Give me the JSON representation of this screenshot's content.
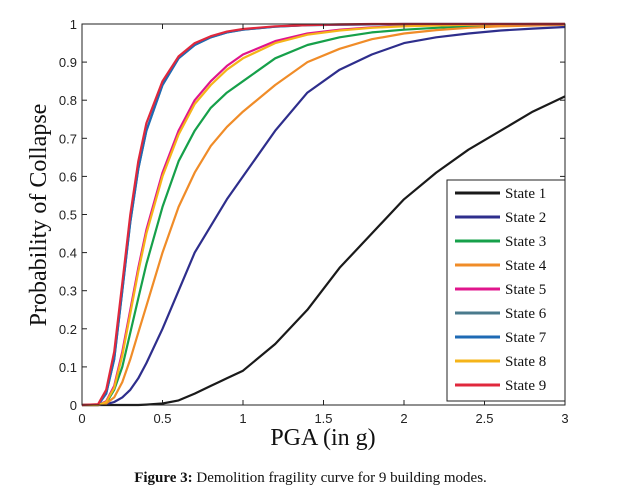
{
  "chart_data": {
    "type": "line",
    "title": "",
    "xlabel": "PGA (in g)",
    "ylabel": "Probability of Collapse",
    "xlim": [
      0,
      3
    ],
    "ylim": [
      0,
      1
    ],
    "xticks": [
      0,
      0.5,
      1,
      1.5,
      2,
      2.5,
      3
    ],
    "xtick_labels": [
      "0",
      "0.5",
      "1",
      "1.5",
      "2",
      "2.5",
      "3"
    ],
    "yticks": [
      0,
      0.1,
      0.2,
      0.3,
      0.4,
      0.5,
      0.6,
      0.7,
      0.8,
      0.9,
      1
    ],
    "ytick_labels": [
      "0",
      "0.1",
      "0.2",
      "0.3",
      "0.4",
      "0.5",
      "0.6",
      "0.7",
      "0.8",
      "0.9",
      "1"
    ],
    "grid": false,
    "legend_position": "lower-right",
    "x": [
      0,
      0.1,
      0.15,
      0.2,
      0.25,
      0.3,
      0.35,
      0.4,
      0.5,
      0.6,
      0.7,
      0.8,
      0.9,
      1.0,
      1.2,
      1.4,
      1.6,
      1.8,
      2.0,
      2.2,
      2.4,
      2.6,
      2.8,
      3.0
    ],
    "series": [
      {
        "name": "State 1",
        "color": "#1a1a1a",
        "values": [
          0,
          0,
          0,
          0,
          0,
          0,
          0,
          0.001,
          0.004,
          0.012,
          0.03,
          0.05,
          0.07,
          0.09,
          0.16,
          0.25,
          0.36,
          0.45,
          0.54,
          0.61,
          0.67,
          0.72,
          0.77,
          0.81
        ]
      },
      {
        "name": "State 2",
        "color": "#2e2e8c",
        "values": [
          0,
          0,
          0.002,
          0.008,
          0.02,
          0.04,
          0.07,
          0.11,
          0.2,
          0.3,
          0.4,
          0.47,
          0.54,
          0.6,
          0.72,
          0.82,
          0.88,
          0.92,
          0.95,
          0.965,
          0.975,
          0.983,
          0.988,
          0.992
        ]
      },
      {
        "name": "State 3",
        "color": "#16a04a",
        "values": [
          0,
          0,
          0.005,
          0.04,
          0.1,
          0.19,
          0.28,
          0.37,
          0.52,
          0.64,
          0.72,
          0.78,
          0.82,
          0.85,
          0.91,
          0.945,
          0.965,
          0.978,
          0.985,
          0.99,
          0.994,
          0.996,
          0.998,
          0.999
        ]
      },
      {
        "name": "State 4",
        "color": "#f08c28",
        "values": [
          0,
          0,
          0.004,
          0.02,
          0.06,
          0.12,
          0.19,
          0.26,
          0.4,
          0.52,
          0.61,
          0.68,
          0.73,
          0.77,
          0.84,
          0.9,
          0.935,
          0.96,
          0.975,
          0.984,
          0.99,
          0.994,
          0.996,
          0.998
        ]
      },
      {
        "name": "State 5",
        "color": "#e0158c",
        "values": [
          0,
          0,
          0.01,
          0.05,
          0.14,
          0.25,
          0.36,
          0.46,
          0.61,
          0.72,
          0.8,
          0.85,
          0.89,
          0.92,
          0.955,
          0.975,
          0.985,
          0.991,
          0.995,
          0.997,
          0.998,
          0.999,
          1.0,
          1.0
        ]
      },
      {
        "name": "State 6",
        "color": "#4a7a8c",
        "values": [
          0,
          0,
          0.03,
          0.12,
          0.3,
          0.48,
          0.62,
          0.72,
          0.84,
          0.91,
          0.945,
          0.965,
          0.978,
          0.985,
          0.993,
          0.997,
          0.998,
          0.999,
          1.0,
          1.0,
          1.0,
          1.0,
          1.0,
          1.0
        ]
      },
      {
        "name": "State 7",
        "color": "#1e6ab4",
        "values": [
          0,
          0,
          0.03,
          0.12,
          0.3,
          0.48,
          0.62,
          0.72,
          0.84,
          0.91,
          0.945,
          0.965,
          0.978,
          0.985,
          0.993,
          0.997,
          0.998,
          0.999,
          1.0,
          1.0,
          1.0,
          1.0,
          1.0,
          1.0
        ]
      },
      {
        "name": "State 8",
        "color": "#f5b419",
        "values": [
          0,
          0,
          0.008,
          0.045,
          0.13,
          0.24,
          0.35,
          0.45,
          0.6,
          0.71,
          0.79,
          0.84,
          0.88,
          0.91,
          0.95,
          0.972,
          0.983,
          0.99,
          0.994,
          0.996,
          0.998,
          0.999,
          1.0,
          1.0
        ]
      },
      {
        "name": "State 9",
        "color": "#e0283c",
        "values": [
          0,
          0.002,
          0.04,
          0.14,
          0.32,
          0.5,
          0.64,
          0.74,
          0.85,
          0.915,
          0.95,
          0.968,
          0.98,
          0.987,
          0.994,
          0.997,
          0.999,
          1.0,
          1.0,
          1.0,
          1.0,
          1.0,
          1.0,
          1.0
        ]
      }
    ]
  },
  "caption": {
    "label": "Figure 3:",
    "text": " Demolition fragility curve for 9 building modes."
  }
}
